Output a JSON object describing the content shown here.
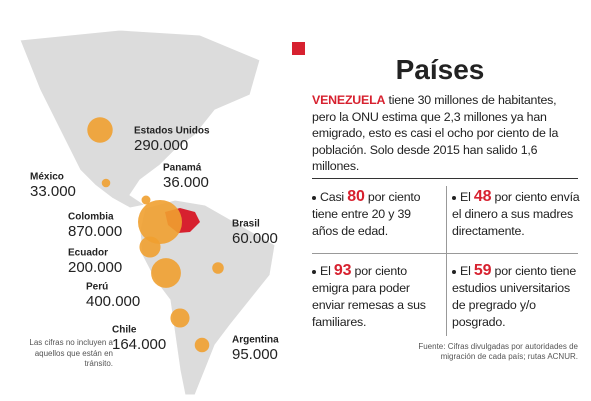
{
  "map": {
    "countries": [
      {
        "name": "Estados Unidos",
        "value": 290000,
        "label": "290.000"
      },
      {
        "name": "México",
        "value": 33000,
        "label": "33.000"
      },
      {
        "name": "Panamá",
        "value": 36000,
        "label": "36.000"
      },
      {
        "name": "Colombia",
        "value": 870000,
        "label": "870.000"
      },
      {
        "name": "Brasil",
        "value": 60000,
        "label": "60.000"
      },
      {
        "name": "Ecuador",
        "value": 200000,
        "label": "200.000"
      },
      {
        "name": "Perú",
        "value": 400000,
        "label": "400.000"
      },
      {
        "name": "Chile",
        "value": 164000,
        "label": "164.000"
      },
      {
        "name": "Argentina",
        "value": 95000,
        "label": "95.000"
      }
    ],
    "note": "Las cifras no incluyen a aquellos que están en tránsito."
  },
  "panel": {
    "title": "Países",
    "intro": {
      "highlight": "VENEZUELA",
      "text": "tiene 30 millones de habitantes, pero la ONU estima que 2,3 millones ya han emigrado, esto es casi el ocho por ciento de la población. Solo desde 2015 han salido 1,6 millones."
    },
    "stats": [
      {
        "prefix": "Casi",
        "number": 80,
        "suffix": "por ciento tiene entre 20 y 39 años de edad."
      },
      {
        "prefix": "El",
        "number": 48,
        "suffix": "por ciento envía el dinero a sus madres directamente."
      },
      {
        "prefix": "El",
        "number": 93,
        "suffix": "por ciento emigra para poder enviar remesas a sus familiares."
      },
      {
        "prefix": "El",
        "number": 59,
        "suffix": "por ciento tiene estudios universitarios de pregrado y/o posgrado."
      }
    ],
    "source": "Fuente: Cifras divulgadas por autoridades de migración de cada país; rutas ACNUR."
  }
}
